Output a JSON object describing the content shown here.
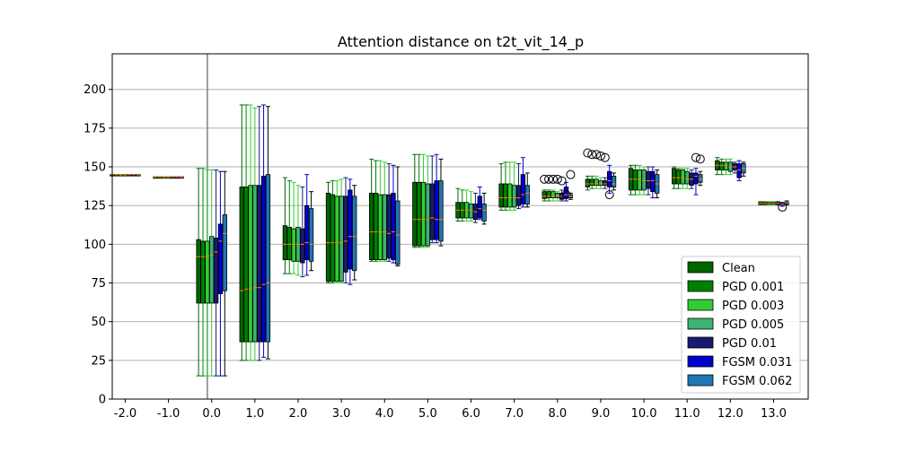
{
  "chart_data": {
    "type": "box",
    "title": "Attention distance on t2t_vit_14_p",
    "xlabel": "",
    "ylabel": "",
    "categories": [
      "-2.0",
      "-1.0",
      "0.0",
      "1.0",
      "2.0",
      "3.0",
      "4.0",
      "5.0",
      "6.0",
      "7.0",
      "8.0",
      "9.0",
      "10.0",
      "11.0",
      "12.0",
      "13.0"
    ],
    "xlim": [
      -2.3,
      13.8
    ],
    "ylim": [
      0,
      223
    ],
    "yticks": [
      0,
      25,
      50,
      75,
      100,
      125,
      150,
      175,
      200
    ],
    "ygrid": true,
    "vertical_marker_x": -0.1,
    "legend_position": "lower-right",
    "series": [
      {
        "name": "Clean",
        "color": "#006400",
        "whisker_color": "#006400",
        "boxes": [
          {
            "q1": 145,
            "median": 145,
            "q3": 145,
            "lo": 145,
            "hi": 145
          },
          {
            "q1": 143.5,
            "median": 143.5,
            "q3": 143.5,
            "lo": 143.5,
            "hi": 143.5
          },
          {
            "q1": 62,
            "median": 92,
            "q3": 103,
            "lo": 15,
            "hi": 149
          },
          {
            "q1": 37,
            "median": 70,
            "q3": 137,
            "lo": 25,
            "hi": 190
          },
          {
            "q1": 90,
            "median": 100,
            "q3": 112,
            "lo": 81,
            "hi": 143
          },
          {
            "q1": 76,
            "median": 101,
            "q3": 133,
            "lo": 75,
            "hi": 140
          },
          {
            "q1": 90,
            "median": 108,
            "q3": 133,
            "lo": 89,
            "hi": 155
          },
          {
            "q1": 99,
            "median": 116,
            "q3": 140,
            "lo": 98,
            "hi": 158
          },
          {
            "q1": 117,
            "median": 122,
            "q3": 127,
            "lo": 115,
            "hi": 136
          },
          {
            "q1": 124,
            "median": 130,
            "q3": 139,
            "lo": 122,
            "hi": 152
          },
          {
            "q1": 129.5,
            "median": 131,
            "q3": 134,
            "lo": 128,
            "hi": 135,
            "fliers": [
              142
            ]
          },
          {
            "q1": 137,
            "median": 139,
            "q3": 142,
            "lo": 135,
            "hi": 144,
            "fliers": [
              159
            ]
          },
          {
            "q1": 135,
            "median": 142,
            "q3": 149,
            "lo": 132,
            "hi": 151
          },
          {
            "q1": 139,
            "median": 143,
            "q3": 149,
            "lo": 136,
            "hi": 150
          },
          {
            "q1": 148,
            "median": 151,
            "q3": 154,
            "lo": 145,
            "hi": 156
          },
          {
            "q1": 126,
            "median": 126.5,
            "q3": 127,
            "lo": 125.5,
            "hi": 127.5
          }
        ]
      },
      {
        "name": "PGD 0.001",
        "color": "#008000",
        "whisker_color": "#008000",
        "boxes": [
          {
            "q1": 145,
            "median": 145,
            "q3": 145,
            "lo": 145,
            "hi": 145
          },
          {
            "q1": 143.5,
            "median": 143.5,
            "q3": 143.5,
            "lo": 143.5,
            "hi": 143.5
          },
          {
            "q1": 62,
            "median": 92,
            "q3": 102,
            "lo": 15,
            "hi": 149
          },
          {
            "q1": 37,
            "median": 71,
            "q3": 137,
            "lo": 25,
            "hi": 190
          },
          {
            "q1": 90,
            "median": 100,
            "q3": 111,
            "lo": 81,
            "hi": 141
          },
          {
            "q1": 76,
            "median": 101,
            "q3": 132,
            "lo": 75,
            "hi": 141
          },
          {
            "q1": 90,
            "median": 108,
            "q3": 133,
            "lo": 89,
            "hi": 154
          },
          {
            "q1": 99,
            "median": 116,
            "q3": 140,
            "lo": 98,
            "hi": 158
          },
          {
            "q1": 117,
            "median": 122,
            "q3": 127,
            "lo": 115,
            "hi": 135
          },
          {
            "q1": 124,
            "median": 130,
            "q3": 139,
            "lo": 122,
            "hi": 153
          },
          {
            "q1": 130,
            "median": 131,
            "q3": 134,
            "lo": 128,
            "hi": 135,
            "fliers": [
              142
            ]
          },
          {
            "q1": 138,
            "median": 139,
            "q3": 142,
            "lo": 136,
            "hi": 144,
            "fliers": [
              158
            ]
          },
          {
            "q1": 135,
            "median": 142,
            "q3": 148,
            "lo": 132,
            "hi": 151
          },
          {
            "q1": 139,
            "median": 143,
            "q3": 148,
            "lo": 136,
            "hi": 149
          },
          {
            "q1": 148,
            "median": 151,
            "q3": 153,
            "lo": 145,
            "hi": 155
          },
          {
            "q1": 126,
            "median": 126.5,
            "q3": 127,
            "lo": 125.5,
            "hi": 127.5
          }
        ]
      },
      {
        "name": "PGD 0.003",
        "color": "#32CD32",
        "whisker_color": "#32CD32",
        "boxes": [
          {
            "q1": 145,
            "median": 145,
            "q3": 145,
            "lo": 145,
            "hi": 145
          },
          {
            "q1": 143.5,
            "median": 143.5,
            "q3": 143.5,
            "lo": 143.5,
            "hi": 143.5
          },
          {
            "q1": 62,
            "median": 92,
            "q3": 102,
            "lo": 15,
            "hi": 148
          },
          {
            "q1": 37,
            "median": 71,
            "q3": 138,
            "lo": 25,
            "hi": 190
          },
          {
            "q1": 89,
            "median": 100,
            "q3": 110,
            "lo": 81,
            "hi": 140
          },
          {
            "q1": 76,
            "median": 101,
            "q3": 131,
            "lo": 75,
            "hi": 141
          },
          {
            "q1": 90,
            "median": 108,
            "q3": 132,
            "lo": 89,
            "hi": 154
          },
          {
            "q1": 99,
            "median": 116,
            "q3": 140,
            "lo": 98,
            "hi": 158
          },
          {
            "q1": 117,
            "median": 122,
            "q3": 127,
            "lo": 115,
            "hi": 135
          },
          {
            "q1": 124,
            "median": 130,
            "q3": 139,
            "lo": 122,
            "hi": 153
          },
          {
            "q1": 130,
            "median": 131,
            "q3": 134,
            "lo": 128,
            "hi": 135,
            "fliers": [
              142
            ]
          },
          {
            "q1": 138,
            "median": 139,
            "q3": 142,
            "lo": 136,
            "hi": 144,
            "fliers": [
              158
            ]
          },
          {
            "q1": 135,
            "median": 142,
            "q3": 148,
            "lo": 132,
            "hi": 151
          },
          {
            "q1": 139,
            "median": 143,
            "q3": 148,
            "lo": 136,
            "hi": 149
          },
          {
            "q1": 148,
            "median": 151,
            "q3": 153,
            "lo": 145,
            "hi": 155
          },
          {
            "q1": 126,
            "median": 126.5,
            "q3": 127,
            "lo": 125.5,
            "hi": 127.5
          }
        ]
      },
      {
        "name": "PGD 0.005",
        "color": "#3CB371",
        "whisker_color": "#32CD32",
        "boxes": [
          {
            "q1": 145,
            "median": 145,
            "q3": 145,
            "lo": 145,
            "hi": 145
          },
          {
            "q1": 143.5,
            "median": 143.5,
            "q3": 143.5,
            "lo": 143.5,
            "hi": 143.5
          },
          {
            "q1": 62,
            "median": 93,
            "q3": 105,
            "lo": 15,
            "hi": 148
          },
          {
            "q1": 37,
            "median": 72,
            "q3": 138,
            "lo": 25,
            "hi": 188
          },
          {
            "q1": 89,
            "median": 100,
            "q3": 111,
            "lo": 80,
            "hi": 138
          },
          {
            "q1": 76,
            "median": 101,
            "q3": 131,
            "lo": 75,
            "hi": 142
          },
          {
            "q1": 90,
            "median": 108,
            "q3": 132,
            "lo": 89,
            "hi": 153
          },
          {
            "q1": 99,
            "median": 116,
            "q3": 139,
            "lo": 98,
            "hi": 157
          },
          {
            "q1": 117,
            "median": 122,
            "q3": 126,
            "lo": 115,
            "hi": 134
          },
          {
            "q1": 124,
            "median": 130,
            "q3": 138,
            "lo": 122,
            "hi": 153
          },
          {
            "q1": 130,
            "median": 131,
            "q3": 133,
            "lo": 128,
            "hi": 134,
            "fliers": [
              142
            ]
          },
          {
            "q1": 138,
            "median": 139,
            "q3": 141,
            "lo": 136,
            "hi": 143,
            "fliers": [
              157
            ]
          },
          {
            "q1": 135,
            "median": 141,
            "q3": 148,
            "lo": 132,
            "hi": 150
          },
          {
            "q1": 139,
            "median": 142,
            "q3": 147,
            "lo": 136,
            "hi": 149
          },
          {
            "q1": 147,
            "median": 150,
            "q3": 153,
            "lo": 145,
            "hi": 155
          },
          {
            "q1": 126,
            "median": 126.5,
            "q3": 127,
            "lo": 125.5,
            "hi": 127.5
          }
        ]
      },
      {
        "name": "PGD 0.01",
        "color": "#191970",
        "whisker_color": "#191970",
        "boxes": [
          {
            "q1": 145,
            "median": 145,
            "q3": 145,
            "lo": 145,
            "hi": 145
          },
          {
            "q1": 143.5,
            "median": 143.5,
            "q3": 143.5,
            "lo": 143.5,
            "hi": 143.5
          },
          {
            "q1": 62,
            "median": 95,
            "q3": 104,
            "lo": 15,
            "hi": 148
          },
          {
            "q1": 37,
            "median": 72,
            "q3": 138,
            "lo": 25,
            "hi": 189
          },
          {
            "q1": 88,
            "median": 100,
            "q3": 110,
            "lo": 79,
            "hi": 137
          },
          {
            "q1": 82,
            "median": 102,
            "q3": 131,
            "lo": 75,
            "hi": 143
          },
          {
            "q1": 91,
            "median": 107,
            "q3": 132,
            "lo": 89,
            "hi": 152
          },
          {
            "q1": 103,
            "median": 117,
            "q3": 139,
            "lo": 101,
            "hi": 157
          },
          {
            "q1": 116,
            "median": 121,
            "q3": 126,
            "lo": 114,
            "hi": 133
          },
          {
            "q1": 125,
            "median": 130,
            "q3": 138,
            "lo": 123,
            "hi": 152
          },
          {
            "q1": 129,
            "median": 131,
            "q3": 133,
            "lo": 128,
            "hi": 135,
            "fliers": [
              141
            ]
          },
          {
            "q1": 138,
            "median": 139,
            "q3": 141,
            "lo": 136,
            "hi": 143,
            "fliers": [
              156
            ]
          },
          {
            "q1": 136,
            "median": 141,
            "q3": 147,
            "lo": 132,
            "hi": 150
          },
          {
            "q1": 138,
            "median": 142,
            "q3": 146,
            "lo": 136,
            "hi": 148
          },
          {
            "q1": 148,
            "median": 150,
            "q3": 152,
            "lo": 146,
            "hi": 153
          },
          {
            "q1": 126,
            "median": 126.5,
            "q3": 127,
            "lo": 125.5,
            "hi": 127.5
          }
        ]
      },
      {
        "name": "FGSM 0.031",
        "color": "#0000CD",
        "whisker_color": "#0000CD",
        "boxes": [
          {
            "q1": 145,
            "median": 145,
            "q3": 145,
            "lo": 145,
            "hi": 145
          },
          {
            "q1": 143.5,
            "median": 143.5,
            "q3": 143.5,
            "lo": 143.5,
            "hi": 143.5
          },
          {
            "q1": 68,
            "median": 102,
            "q3": 113,
            "lo": 15,
            "hi": 147
          },
          {
            "q1": 37,
            "median": 74,
            "q3": 144,
            "lo": 27,
            "hi": 190
          },
          {
            "q1": 90,
            "median": 101,
            "q3": 125,
            "lo": 80,
            "hi": 145
          },
          {
            "q1": 84,
            "median": 105,
            "q3": 135,
            "lo": 74,
            "hi": 142
          },
          {
            "q1": 90,
            "median": 108,
            "q3": 133,
            "lo": 88,
            "hi": 151
          },
          {
            "q1": 103,
            "median": 116,
            "q3": 141,
            "lo": 101,
            "hi": 158
          },
          {
            "q1": 117,
            "median": 123,
            "q3": 131,
            "lo": 116,
            "hi": 137
          },
          {
            "q1": 126,
            "median": 132,
            "q3": 145,
            "lo": 124,
            "hi": 156
          },
          {
            "q1": 130,
            "median": 132,
            "q3": 137,
            "lo": 128,
            "hi": 140,
            "fliers": [
              132
            ]
          },
          {
            "q1": 137,
            "median": 141,
            "q3": 147,
            "lo": 133,
            "hi": 151,
            "fliers": [
              132
            ]
          },
          {
            "q1": 134,
            "median": 141,
            "q3": 147,
            "lo": 130,
            "hi": 150
          },
          {
            "q1": 139,
            "median": 144,
            "q3": 146,
            "lo": 132,
            "hi": 149,
            "fliers": [
              156
            ]
          },
          {
            "q1": 143,
            "median": 148,
            "q3": 152,
            "lo": 141,
            "hi": 154
          },
          {
            "q1": 125.5,
            "median": 126,
            "q3": 126.5,
            "lo": 124.5,
            "hi": 127,
            "fliers": [
              124
            ]
          }
        ]
      },
      {
        "name": "FGSM 0.062",
        "color": "#1F77B4",
        "whisker_color": "#000000",
        "boxes": [
          {
            "q1": 145,
            "median": 145,
            "q3": 145,
            "lo": 145,
            "hi": 145
          },
          {
            "q1": 143.5,
            "median": 143.5,
            "q3": 143.5,
            "lo": 143.5,
            "hi": 143.5
          },
          {
            "q1": 70,
            "median": 107,
            "q3": 119,
            "lo": 15,
            "hi": 147
          },
          {
            "q1": 37,
            "median": 75,
            "q3": 145,
            "lo": 26,
            "hi": 189
          },
          {
            "q1": 89,
            "median": 100,
            "q3": 123,
            "lo": 83,
            "hi": 134
          },
          {
            "q1": 83,
            "median": 105,
            "q3": 131,
            "lo": 77,
            "hi": 138
          },
          {
            "q1": 87,
            "median": 106,
            "q3": 128,
            "lo": 86,
            "hi": 150
          },
          {
            "q1": 102,
            "median": 116,
            "q3": 141,
            "lo": 99,
            "hi": 155
          },
          {
            "q1": 115,
            "median": 122,
            "q3": 126,
            "lo": 113,
            "hi": 133
          },
          {
            "q1": 126,
            "median": 133,
            "q3": 138,
            "lo": 124,
            "hi": 146
          },
          {
            "q1": 130,
            "median": 131,
            "q3": 132,
            "lo": 129,
            "hi": 133,
            "fliers": [
              145
            ]
          },
          {
            "q1": 137,
            "median": 139,
            "q3": 144,
            "lo": 135,
            "hi": 146
          },
          {
            "q1": 133,
            "median": 139,
            "q3": 145,
            "lo": 130,
            "hi": 148
          },
          {
            "q1": 140,
            "median": 142,
            "q3": 145,
            "lo": 138,
            "hi": 147,
            "fliers": [
              155
            ]
          },
          {
            "q1": 146,
            "median": 149,
            "q3": 152,
            "lo": 144,
            "hi": 153
          },
          {
            "q1": 126,
            "median": 126.5,
            "q3": 127,
            "lo": 125.5,
            "hi": 128
          }
        ]
      }
    ]
  }
}
